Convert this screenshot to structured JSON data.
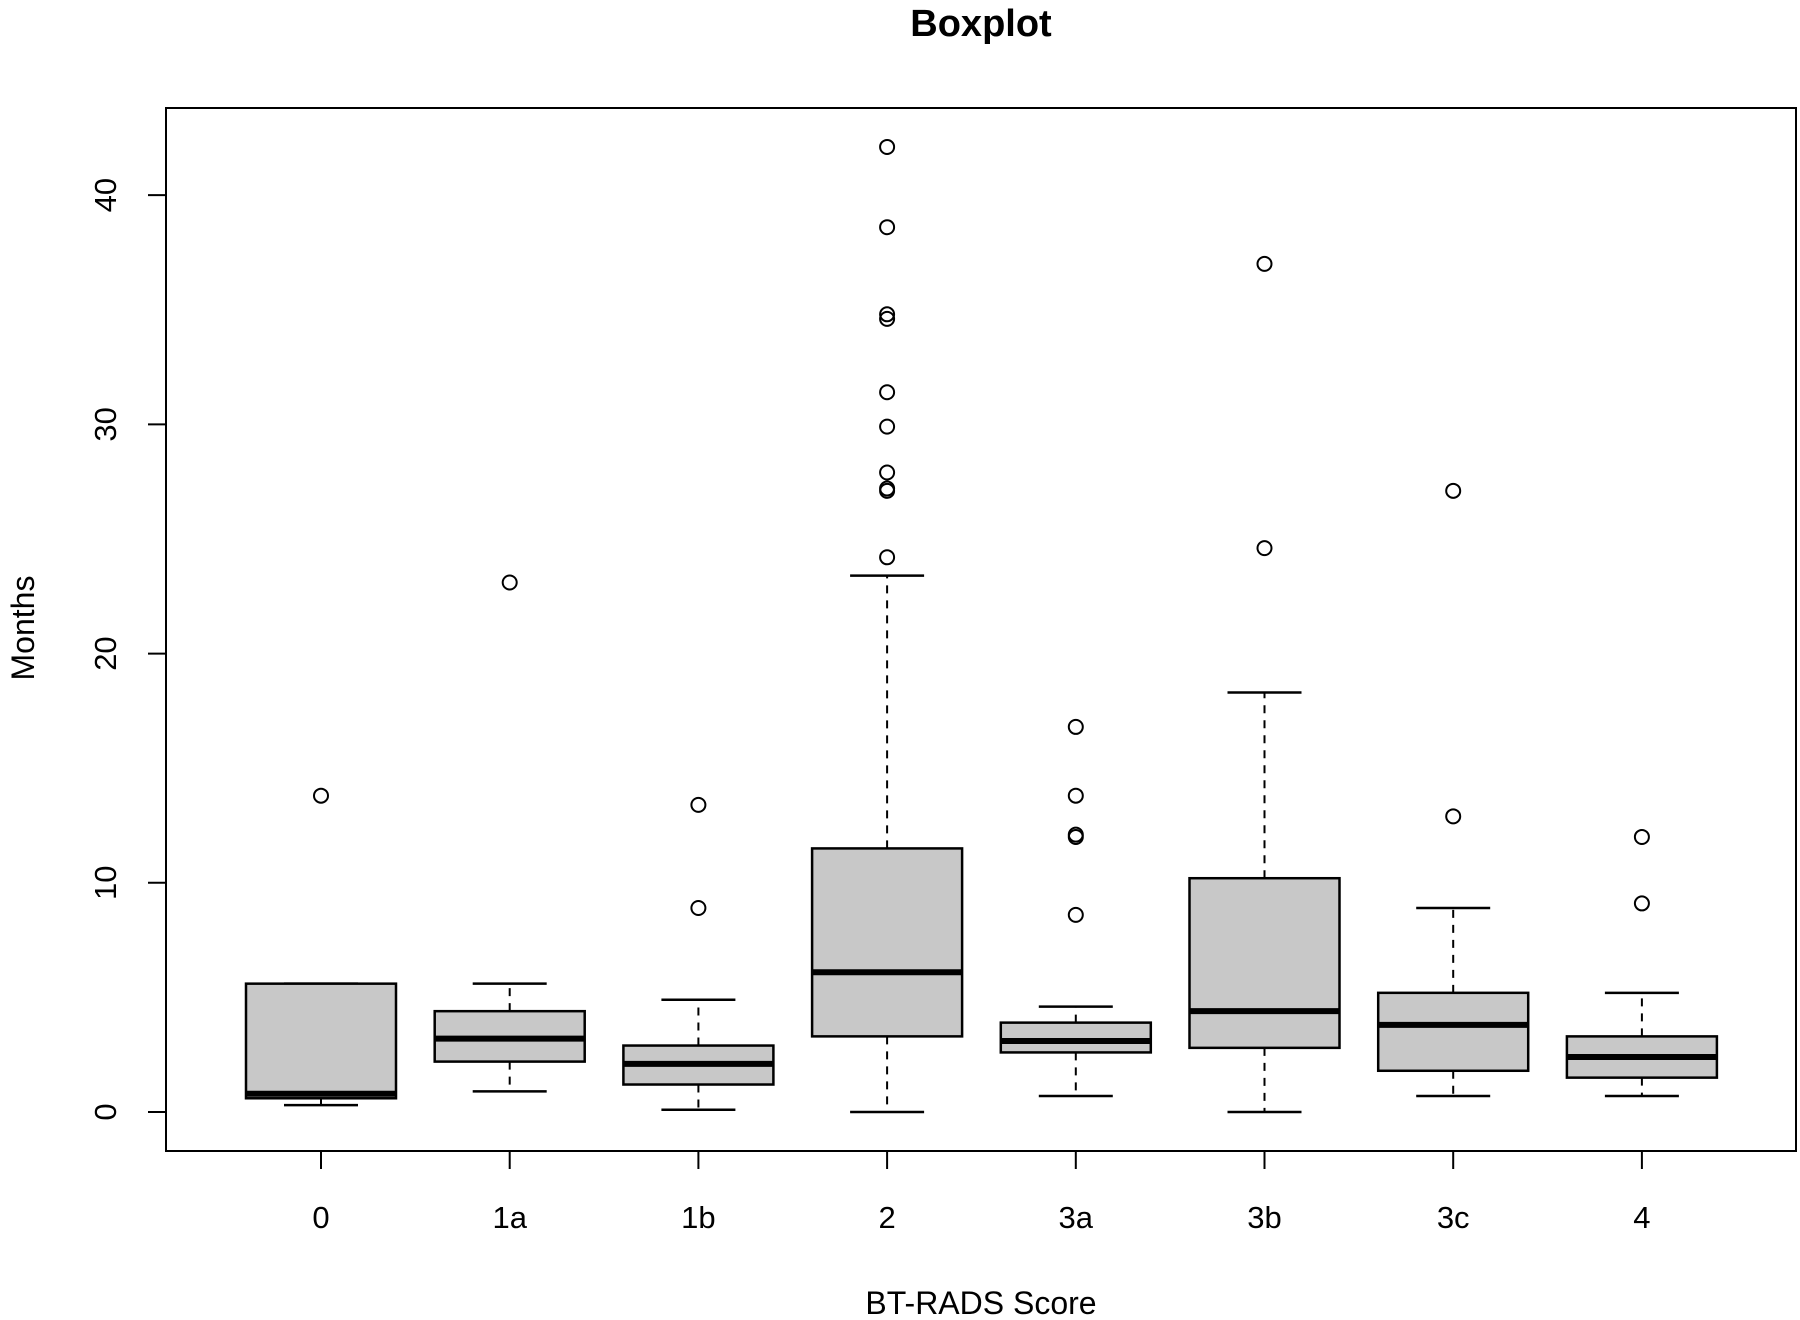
{
  "chart_data": {
    "type": "boxplot",
    "title": "Boxplot",
    "xlabel": "BT-RADS Score",
    "ylabel": "Months",
    "ylim": [
      -1.7,
      43.8
    ],
    "yticks": [
      0,
      10,
      20,
      30,
      40
    ],
    "grid": false,
    "box_color": "#c8c8c8",
    "categories": [
      "0",
      "1a",
      "1b",
      "2",
      "3a",
      "3b",
      "3c",
      "4"
    ],
    "boxes": [
      {
        "category": "0",
        "whisker_low": 0.3,
        "q1": 0.6,
        "median": 0.8,
        "q3": 5.6,
        "whisker_high": 5.6,
        "outliers": [
          13.8
        ]
      },
      {
        "category": "1a",
        "whisker_low": 0.9,
        "q1": 2.2,
        "median": 3.2,
        "q3": 4.4,
        "whisker_high": 5.6,
        "outliers": [
          23.1
        ]
      },
      {
        "category": "1b",
        "whisker_low": 0.1,
        "q1": 1.2,
        "median": 2.1,
        "q3": 2.9,
        "whisker_high": 4.9,
        "outliers": [
          8.9,
          13.4
        ]
      },
      {
        "category": "2",
        "whisker_low": 0.0,
        "q1": 3.3,
        "median": 6.1,
        "q3": 11.5,
        "whisker_high": 23.4,
        "outliers": [
          24.2,
          27.1,
          27.2,
          27.9,
          29.9,
          31.4,
          34.6,
          34.8,
          38.6,
          42.1
        ]
      },
      {
        "category": "3a",
        "whisker_low": 0.7,
        "q1": 2.6,
        "median": 3.1,
        "q3": 3.9,
        "whisker_high": 4.6,
        "outliers": [
          8.6,
          12.0,
          12.1,
          13.8,
          16.8
        ]
      },
      {
        "category": "3b",
        "whisker_low": 0.0,
        "q1": 2.8,
        "median": 4.4,
        "q3": 10.2,
        "whisker_high": 18.3,
        "outliers": [
          24.6,
          37.0
        ]
      },
      {
        "category": "3c",
        "whisker_low": 0.7,
        "q1": 1.8,
        "median": 3.8,
        "q3": 5.2,
        "whisker_high": 8.9,
        "outliers": [
          12.9,
          27.1
        ]
      },
      {
        "category": "4",
        "whisker_low": 0.7,
        "q1": 1.5,
        "median": 2.4,
        "q3": 3.3,
        "whisker_high": 5.2,
        "outliers": [
          9.1,
          12.0
        ]
      }
    ]
  }
}
